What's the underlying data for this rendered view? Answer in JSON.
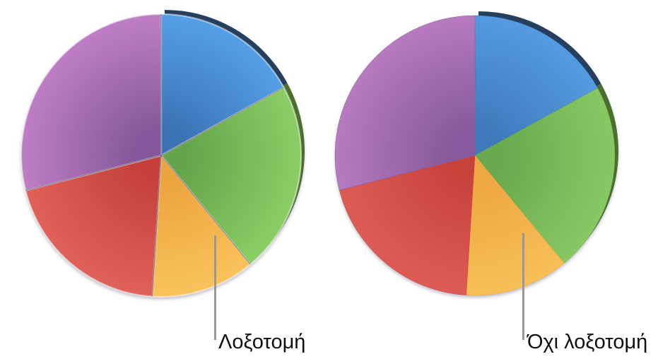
{
  "figure": {
    "background": "#ffffff",
    "description_labels": {
      "left": "Λοξοτομή",
      "right": "Όχι λοξοτομή"
    },
    "leader_line_color": "#98989b",
    "text_color": "#111111"
  },
  "chart_data": [
    {
      "type": "pie",
      "style": "3d",
      "bevel": true,
      "label": "Λοξοτομή",
      "direction": "clockwise",
      "start_angle_deg": 0,
      "categories": [
        "blue",
        "green",
        "orange",
        "red",
        "purple"
      ],
      "values": [
        17,
        22,
        12,
        20,
        29
      ],
      "legend": "none",
      "colors": {
        "blue": {
          "base": "#3a72b4",
          "light": "#55a0e8",
          "rim": "#263f5d"
        },
        "green": {
          "base": "#65a44b",
          "light": "#8ccf66",
          "rim": "#4c6e2f"
        },
        "orange": {
          "base": "#eba33e",
          "light": "#fac35c",
          "rim": "#a86e1f"
        },
        "red": {
          "base": "#c5403a",
          "light": "#e0625a",
          "rim": "#8e2b26"
        },
        "purple": {
          "base": "#84589a",
          "light": "#c07fc7",
          "rim": "#5c3d6e"
        }
      }
    },
    {
      "type": "pie",
      "style": "3d",
      "bevel": false,
      "label": "Όχι λοξοτομή",
      "direction": "clockwise",
      "start_angle_deg": 0,
      "categories": [
        "blue",
        "green",
        "orange",
        "red",
        "purple"
      ],
      "values": [
        17,
        22,
        12,
        20,
        29
      ],
      "legend": "none",
      "colors": {
        "blue": {
          "base": "#3f79bb",
          "light": "#549ce2",
          "rim": "#263f5d"
        },
        "green": {
          "base": "#68a84f",
          "light": "#89c964",
          "rim": "#4c6e2f"
        },
        "orange": {
          "base": "#eda742",
          "light": "#f8bf58",
          "rim": "#a86e1f"
        },
        "red": {
          "base": "#c8423c",
          "light": "#dd5d56",
          "rim": "#8e2b26"
        },
        "purple": {
          "base": "#865a9c",
          "light": "#b87bc0",
          "rim": "#5c3d6e"
        }
      }
    }
  ]
}
